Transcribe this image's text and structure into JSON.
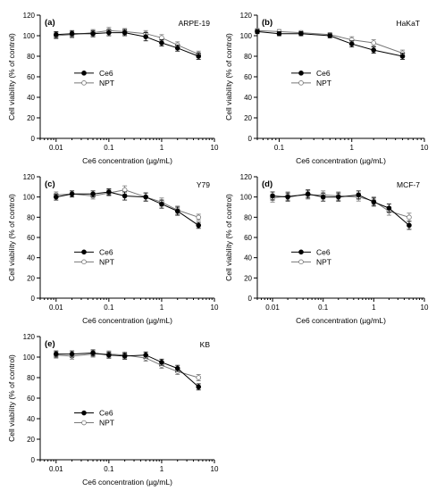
{
  "chart_data": [
    {
      "type": "line",
      "panel_label": "(a)",
      "cell_line": "ARPE-19",
      "xlabel": "Ce6 concentration (µg/mL)",
      "ylabel": "Cell viability (% of control)",
      "xscale": "log",
      "xlim": [
        0.005,
        10
      ],
      "ylim": [
        0,
        120
      ],
      "xticks": [
        "0.01",
        "0.1",
        "1",
        "10"
      ],
      "yticks": [
        "0",
        "20",
        "40",
        "60",
        "80",
        "100",
        "120"
      ],
      "legend": "left-middle",
      "series": [
        {
          "name": "Ce6",
          "marker": "filled",
          "x": [
            0.01,
            0.02,
            0.05,
            0.1,
            0.2,
            0.5,
            1,
            2,
            5
          ],
          "y": [
            101,
            102,
            102,
            103,
            103,
            99,
            93,
            88,
            80
          ],
          "err": [
            3,
            3,
            3,
            3,
            3,
            4,
            3,
            3,
            3
          ]
        },
        {
          "name": "NPT",
          "marker": "open",
          "x": [
            0.01,
            0.02,
            0.05,
            0.1,
            0.2,
            0.5,
            1,
            2,
            5
          ],
          "y": [
            100,
            101,
            103,
            105,
            104,
            102,
            98,
            91,
            82
          ],
          "err": [
            3,
            3,
            3,
            3,
            3,
            3,
            3,
            3,
            3
          ]
        }
      ]
    },
    {
      "type": "line",
      "panel_label": "(b)",
      "cell_line": "HaKaT",
      "xlabel": "Ce6 concentration (µg/mL)",
      "ylabel": "Cell viability (% of control)",
      "xscale": "log",
      "xlim": [
        0.05,
        10
      ],
      "ylim": [
        0,
        120
      ],
      "xticks": [
        "0.1",
        "1",
        "10"
      ],
      "yticks": [
        "0",
        "20",
        "40",
        "60",
        "80",
        "100",
        "120"
      ],
      "legend": "left-middle",
      "series": [
        {
          "name": "Ce6",
          "marker": "filled",
          "x": [
            0.05,
            0.1,
            0.2,
            0.5,
            1,
            2,
            5
          ],
          "y": [
            104,
            102,
            102,
            100,
            92,
            86,
            80
          ],
          "err": [
            2,
            2,
            2,
            2,
            3,
            3,
            3
          ]
        },
        {
          "name": "NPT",
          "marker": "open",
          "x": [
            0.05,
            0.1,
            0.2,
            0.5,
            1,
            2,
            5
          ],
          "y": [
            105,
            104,
            103,
            101,
            96,
            93,
            83
          ],
          "err": [
            2,
            2,
            2,
            2,
            3,
            3,
            3
          ]
        }
      ]
    },
    {
      "type": "line",
      "panel_label": "(c)",
      "cell_line": "Y79",
      "xlabel": "Ce6 concentration (µg/mL)",
      "ylabel": "Cell viability (% of control)",
      "xscale": "log",
      "xlim": [
        0.005,
        10
      ],
      "ylim": [
        0,
        120
      ],
      "xticks": [
        "0.01",
        "0.1",
        "1",
        "10"
      ],
      "yticks": [
        "0",
        "20",
        "40",
        "60",
        "80",
        "100",
        "120"
      ],
      "legend": "left-lower",
      "series": [
        {
          "name": "Ce6",
          "marker": "filled",
          "x": [
            0.01,
            0.02,
            0.05,
            0.1,
            0.2,
            0.5,
            1,
            2,
            5
          ],
          "y": [
            100,
            103,
            103,
            105,
            101,
            100,
            93,
            86,
            72
          ],
          "err": [
            3,
            3,
            3,
            3,
            4,
            4,
            4,
            4,
            3
          ]
        },
        {
          "name": "NPT",
          "marker": "open",
          "x": [
            0.01,
            0.02,
            0.05,
            0.1,
            0.2,
            0.5,
            1,
            2,
            5
          ],
          "y": [
            102,
            103,
            101,
            104,
            107,
            100,
            95,
            87,
            80
          ],
          "err": [
            3,
            3,
            3,
            3,
            4,
            4,
            4,
            4,
            3
          ]
        }
      ]
    },
    {
      "type": "line",
      "panel_label": "(d)",
      "cell_line": "MCF-7",
      "xlabel": "Ce6 concentration (µg/mL)",
      "ylabel": "Cell viability (% of control)",
      "xscale": "log",
      "xlim": [
        0.005,
        10
      ],
      "ylim": [
        0,
        120
      ],
      "xticks": [
        "0.01",
        "0.1",
        "1",
        "10"
      ],
      "yticks": [
        "0",
        "20",
        "40",
        "60",
        "80",
        "100",
        "120"
      ],
      "legend": "left-lower",
      "series": [
        {
          "name": "Ce6",
          "marker": "filled",
          "x": [
            0.01,
            0.02,
            0.05,
            0.1,
            0.2,
            0.5,
            1,
            2,
            5
          ],
          "y": [
            101,
            100,
            103,
            100,
            100,
            102,
            95,
            89,
            72
          ],
          "err": [
            4,
            4,
            4,
            4,
            4,
            4,
            4,
            4,
            4
          ]
        },
        {
          "name": "NPT",
          "marker": "open",
          "x": [
            0.01,
            0.02,
            0.05,
            0.1,
            0.2,
            0.5,
            1,
            2,
            5
          ],
          "y": [
            99,
            101,
            102,
            102,
            101,
            100,
            96,
            86,
            80
          ],
          "err": [
            4,
            4,
            4,
            4,
            4,
            4,
            4,
            4,
            4
          ]
        }
      ]
    },
    {
      "type": "line",
      "panel_label": "(e)",
      "cell_line": "KB",
      "xlabel": "Ce6 concentration (µg/mL)",
      "ylabel": "Cell viability (% of control)",
      "xscale": "log",
      "xlim": [
        0.005,
        10
      ],
      "ylim": [
        0,
        120
      ],
      "xticks": [
        "0.01",
        "0.1",
        "1",
        "10"
      ],
      "yticks": [
        "0",
        "20",
        "40",
        "60",
        "80",
        "100",
        "120"
      ],
      "legend": "left-lower",
      "series": [
        {
          "name": "Ce6",
          "marker": "filled",
          "x": [
            0.01,
            0.02,
            0.05,
            0.1,
            0.2,
            0.5,
            1,
            2,
            5
          ],
          "y": [
            103,
            103,
            104,
            102,
            101,
            102,
            95,
            89,
            71
          ],
          "err": [
            3,
            3,
            3,
            3,
            3,
            3,
            3,
            3,
            3
          ]
        },
        {
          "name": "NPT",
          "marker": "open",
          "x": [
            0.01,
            0.02,
            0.05,
            0.1,
            0.2,
            0.5,
            1,
            2,
            5
          ],
          "y": [
            102,
            101,
            103,
            103,
            102,
            99,
            92,
            86,
            80
          ],
          "err": [
            3,
            3,
            3,
            3,
            3,
            3,
            3,
            3,
            3
          ]
        }
      ]
    }
  ],
  "colors": {
    "ce6": "#000000",
    "npt": "#777777"
  }
}
